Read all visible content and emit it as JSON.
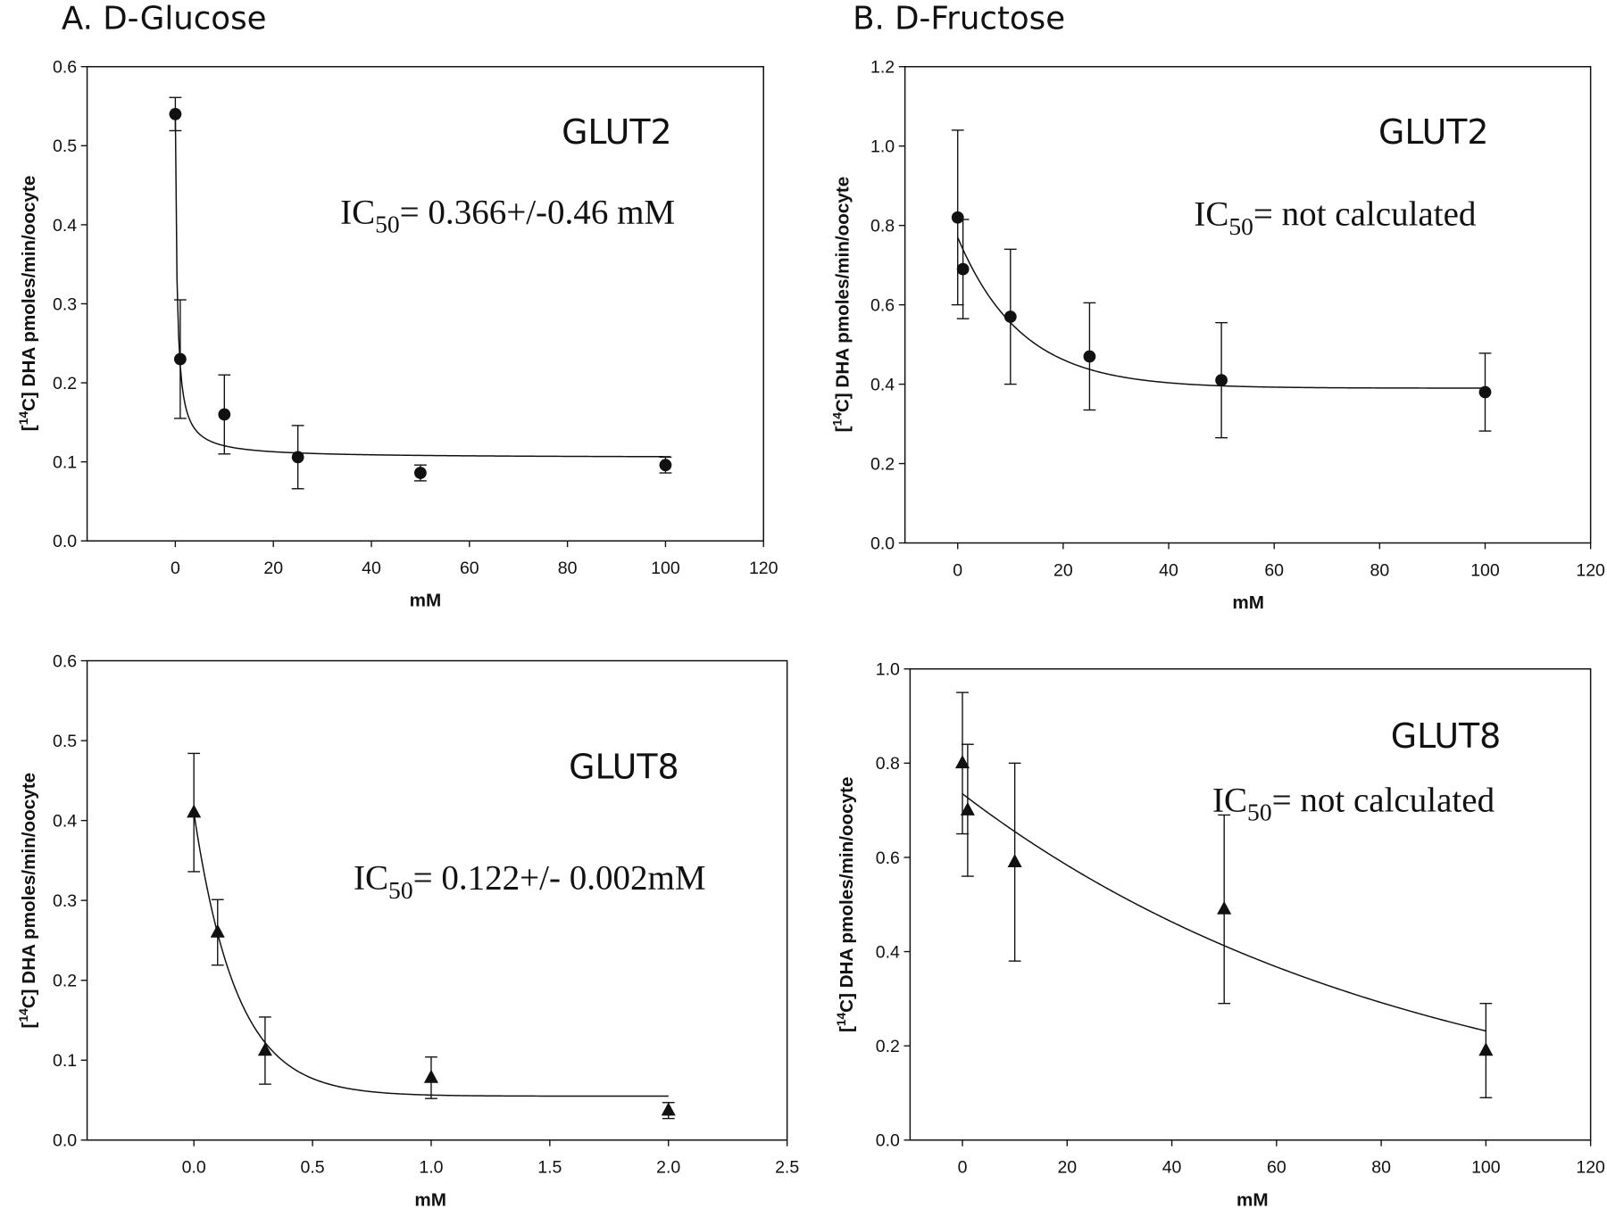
{
  "panel_titles": [
    "A. D-Glucose",
    "B. D-Fructose"
  ],
  "chart_data": [
    {
      "type": "scatter",
      "panel": "A. D-Glucose",
      "label": "GLUT2",
      "annotation": {
        "prefix": "IC",
        "sub": "50",
        "text": "= 0.366+/-0.46  mM"
      },
      "xlabel": "mM",
      "ylabel": {
        "open": "[",
        "sup": "14",
        "rest": "C] DHA pmoles/min/oocyte"
      },
      "xlim": [
        -18,
        120
      ],
      "ylim": [
        0,
        0.6
      ],
      "xticks": [
        "0",
        "20",
        "40",
        "60",
        "80",
        "100",
        "120"
      ],
      "yticks": [
        "0.0",
        "0.1",
        "0.2",
        "0.3",
        "0.4",
        "0.5",
        "0.6"
      ],
      "marker": "circle",
      "x": [
        0,
        1,
        10,
        25,
        50,
        100
      ],
      "y": [
        0.54,
        0.23,
        0.16,
        0.106,
        0.086,
        0.096
      ],
      "error": [
        0.021,
        0.075,
        0.05,
        0.04,
        0.01,
        0.01
      ],
      "fit": {
        "model": "hyperbolic",
        "bottom": 0.105,
        "span": 0.435,
        "ic50": 0.366,
        "xrange": [
          0,
          101
        ]
      },
      "grid": false,
      "legend": "none"
    },
    {
      "type": "scatter",
      "panel": "B. D-Fructose",
      "label": "GLUT2",
      "annotation": {
        "prefix": "IC",
        "sub": "50",
        "text": "= not calculated"
      },
      "xlabel": "mM",
      "ylabel": {
        "open": "[",
        "sup": "14",
        "rest": "C] DHA pmoles/min/oocyte"
      },
      "xlim": [
        -10,
        120
      ],
      "ylim": [
        0,
        1.2
      ],
      "xticks": [
        "0",
        "20",
        "40",
        "60",
        "80",
        "100",
        "120"
      ],
      "yticks": [
        "0.0",
        "0.2",
        "0.4",
        "0.6",
        "0.8",
        "1.0",
        "1.2"
      ],
      "marker": "circle",
      "x": [
        0,
        1,
        10,
        25,
        50,
        100
      ],
      "y": [
        0.82,
        0.69,
        0.57,
        0.47,
        0.41,
        0.38
      ],
      "error": [
        0.22,
        0.125,
        0.17,
        0.135,
        0.145,
        0.098
      ],
      "fit": {
        "model": "exponential",
        "bottom": 0.39,
        "span": 0.38,
        "tau": 12,
        "xrange": [
          0,
          100
        ]
      },
      "grid": false,
      "legend": "none"
    },
    {
      "type": "scatter",
      "panel": "A. D-Glucose",
      "label": "GLUT8",
      "annotation": {
        "prefix": "IC",
        "sub": "50",
        "text": "= 0.122+/- 0.002mM"
      },
      "xlabel": "mM",
      "ylabel": {
        "open": "[",
        "sup": "14",
        "rest": "C] DHA pmoles/min/oocyte"
      },
      "xlim": [
        -0.45,
        2.5
      ],
      "ylim": [
        0,
        0.6
      ],
      "xticks": [
        "0.0",
        "0.5",
        "1.0",
        "1.5",
        "2.0",
        "2.5"
      ],
      "yticks": [
        "0.0",
        "0.1",
        "0.2",
        "0.3",
        "0.4",
        "0.5",
        "0.6"
      ],
      "marker": "triangle",
      "x": [
        0,
        0.1,
        0.3,
        1,
        2
      ],
      "y": [
        0.41,
        0.26,
        0.112,
        0.078,
        0.037
      ],
      "error": [
        0.074,
        0.041,
        0.042,
        0.026,
        0.01
      ],
      "fit": {
        "model": "exponential",
        "bottom": 0.055,
        "span": 0.355,
        "tau": 0.18,
        "xrange": [
          0,
          2
        ]
      },
      "grid": false,
      "legend": "none"
    },
    {
      "type": "scatter",
      "panel": "B. D-Fructose",
      "label": "GLUT8",
      "annotation": {
        "prefix": "IC",
        "sub": "50",
        "text": "= not calculated"
      },
      "xlabel": "mM",
      "ylabel": {
        "open": "[",
        "sup": "14",
        "rest": "C] DHA pmoles/min/oocyte"
      },
      "xlim": [
        -10,
        120
      ],
      "ylim": [
        0,
        1.0
      ],
      "xticks": [
        "0",
        "20",
        "40",
        "60",
        "80",
        "100",
        "120"
      ],
      "yticks": [
        "0.0",
        "0.2",
        "0.4",
        "0.6",
        "0.8",
        "1.0"
      ],
      "marker": "triangle",
      "x": [
        0,
        1,
        10,
        50,
        100
      ],
      "y": [
        0.8,
        0.7,
        0.59,
        0.49,
        0.19
      ],
      "error": [
        0.15,
        0.14,
        0.21,
        0.2,
        0.1
      ],
      "fit": {
        "model": "exponential",
        "bottom": 0,
        "span": 0.735,
        "tau": 86.6,
        "xrange": [
          0,
          100
        ]
      },
      "grid": false,
      "legend": "none"
    }
  ]
}
